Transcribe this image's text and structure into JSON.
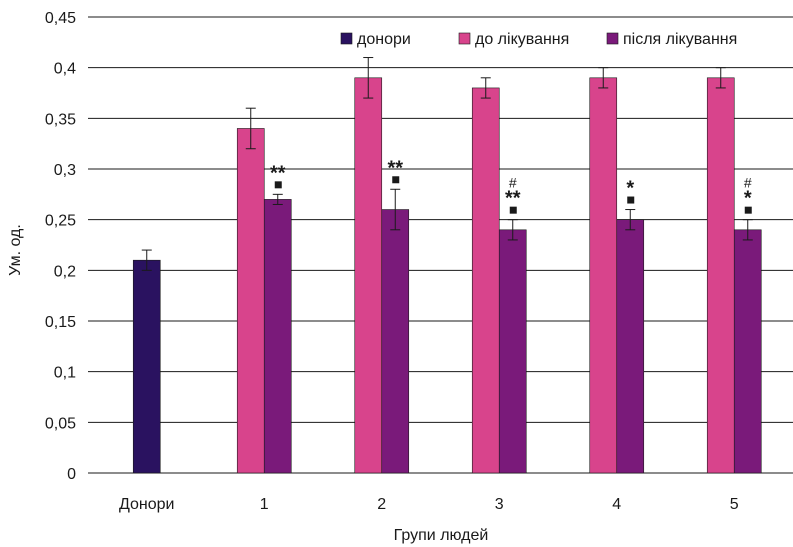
{
  "chart_data": {
    "type": "bar",
    "xlabel": "Групи людей",
    "ylabel": "Ум. од.",
    "ylim": [
      0,
      0.45
    ],
    "yticks": [
      0,
      0.05,
      0.1,
      0.15,
      0.2,
      0.25,
      0.3,
      0.35,
      0.4,
      0.45
    ],
    "ytick_labels": [
      "0",
      "0,05",
      "0,1",
      "0,15",
      "0,2",
      "0,25",
      "0,3",
      "0,35",
      "0,4",
      "0,45"
    ],
    "grid": true,
    "legend_position": "top-right",
    "categories": [
      "Донори",
      "1",
      "2",
      "3",
      "4",
      "5"
    ],
    "series": [
      {
        "name": "донори",
        "color": "#2a1260",
        "values": [
          0.21,
          null,
          null,
          null,
          null,
          null
        ],
        "errors": [
          0.01,
          null,
          null,
          null,
          null,
          null
        ]
      },
      {
        "name": "до лікування",
        "color": "#d8448c",
        "values": [
          null,
          0.34,
          0.39,
          0.38,
          0.39,
          0.39
        ],
        "errors": [
          null,
          0.02,
          0.02,
          0.01,
          0.01,
          0.01
        ]
      },
      {
        "name": "після лікування",
        "color": "#7a1a7a",
        "values": [
          null,
          0.27,
          0.26,
          0.24,
          0.25,
          0.24
        ],
        "errors": [
          null,
          0.005,
          0.02,
          0.01,
          0.01,
          0.01
        ]
      }
    ],
    "annotations": [
      {
        "category": "1",
        "series": "після лікування",
        "hash": "",
        "square": true,
        "stars": "**"
      },
      {
        "category": "2",
        "series": "після лікування",
        "hash": "",
        "square": true,
        "stars": "**"
      },
      {
        "category": "3",
        "series": "після лікування",
        "hash": "#",
        "square": true,
        "stars": "**"
      },
      {
        "category": "4",
        "series": "після лікування",
        "hash": "",
        "square": true,
        "stars": "*"
      },
      {
        "category": "5",
        "series": "після лікування",
        "hash": "#",
        "square": true,
        "stars": "*"
      }
    ]
  }
}
